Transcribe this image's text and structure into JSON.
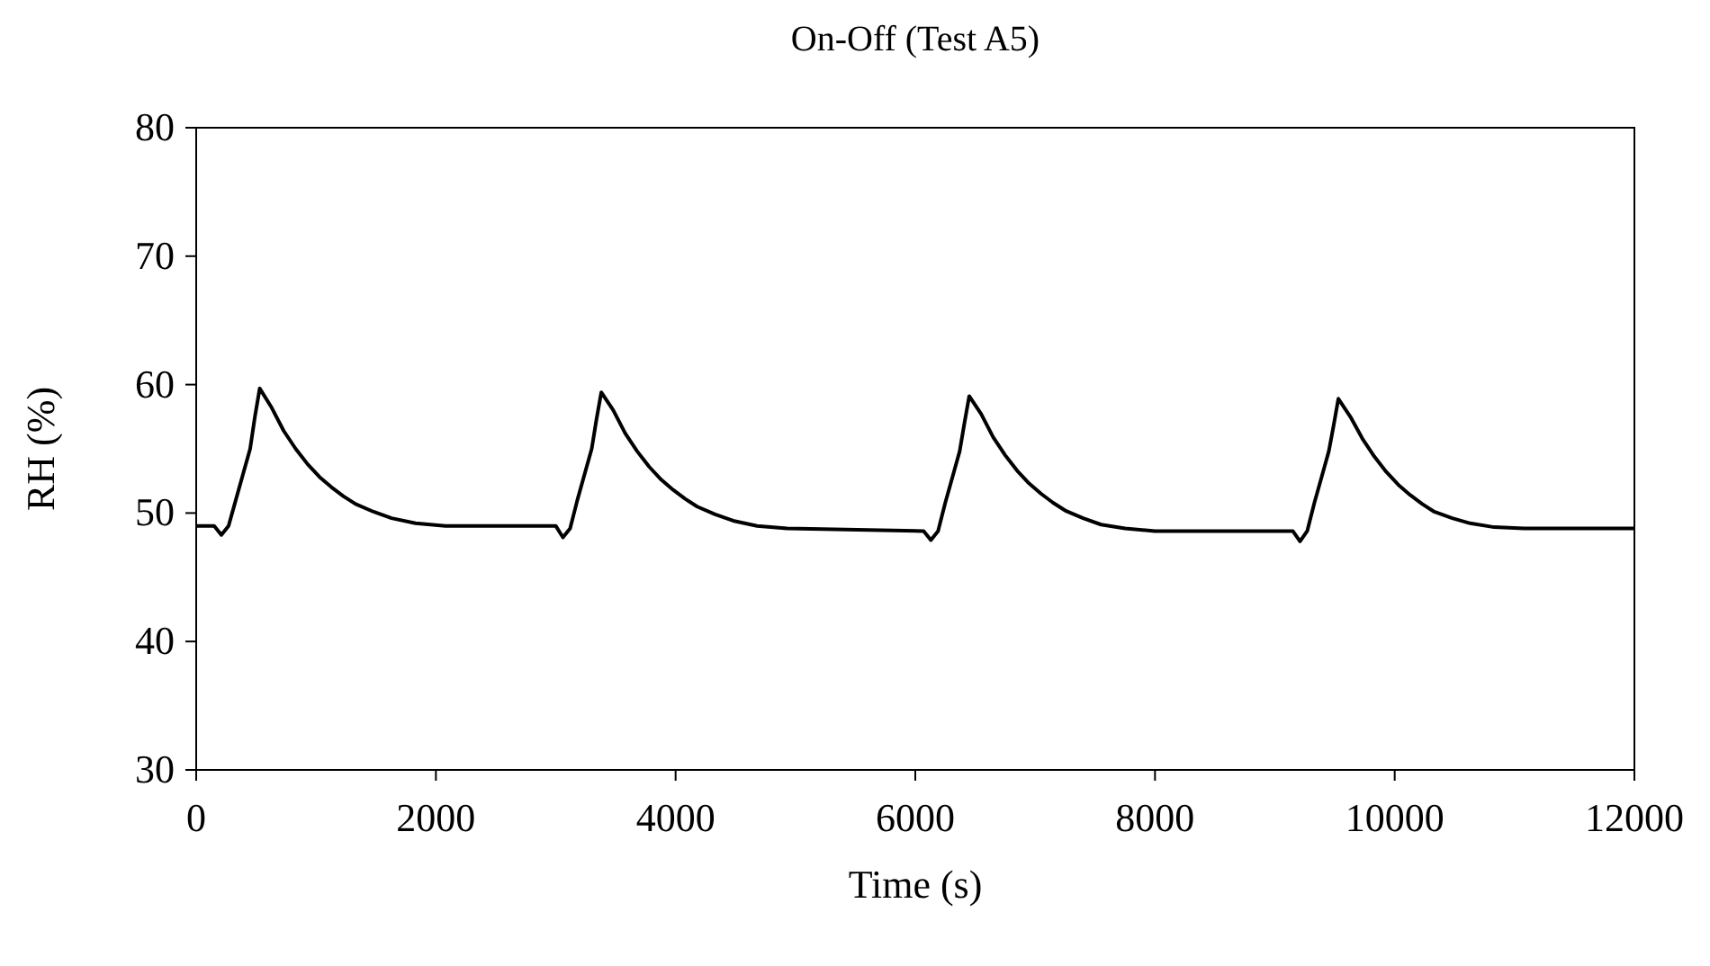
{
  "chart_data": {
    "type": "line",
    "title": "On-Off (Test A5)",
    "xlabel": "Time (s)",
    "ylabel": "RH (%)",
    "xlim": [
      0,
      12000
    ],
    "xticks": [
      0,
      2000,
      4000,
      6000,
      8000,
      10000,
      12000
    ],
    "ylim": [
      30,
      80
    ],
    "yticks": [
      30,
      40,
      50,
      60,
      70,
      80
    ],
    "grid": false,
    "line_style": "solid",
    "series": [
      {
        "color": "#000000",
        "x": [
          0,
          150,
          210,
          270,
          330,
          390,
          450,
          490,
          530,
          630,
          730,
          830,
          930,
          1030,
          1130,
          1230,
          1330,
          1480,
          1630,
          1830,
          2080,
          3000,
          3060,
          3120,
          3180,
          3240,
          3300,
          3340,
          3380,
          3480,
          3580,
          3680,
          3780,
          3880,
          3980,
          4080,
          4180,
          4330,
          4480,
          4680,
          4930,
          6070,
          6130,
          6190,
          6250,
          6310,
          6370,
          6410,
          6450,
          6550,
          6650,
          6750,
          6850,
          6950,
          7050,
          7150,
          7250,
          7400,
          7550,
          7750,
          8000,
          9150,
          9210,
          9270,
          9330,
          9390,
          9450,
          9490,
          9530,
          9630,
          9730,
          9830,
          9930,
          10030,
          10130,
          10230,
          10330,
          10480,
          10630,
          10830,
          11080,
          12000
        ],
        "values": [
          49.0,
          49.0,
          48.3,
          49.0,
          51,
          53,
          55,
          57.5,
          59.7,
          58.2,
          56.4,
          55,
          53.8,
          52.8,
          52,
          51.3,
          50.7,
          50.1,
          49.6,
          49.2,
          49.0,
          49.0,
          48.1,
          48.8,
          51,
          53,
          55,
          57.3,
          59.4,
          58,
          56.2,
          54.8,
          53.6,
          52.6,
          51.8,
          51.1,
          50.5,
          49.9,
          49.4,
          49.0,
          48.8,
          48.6,
          47.9,
          48.6,
          50.8,
          52.8,
          54.8,
          57,
          59.1,
          57.7,
          55.9,
          54.5,
          53.3,
          52.3,
          51.5,
          50.8,
          50.2,
          49.6,
          49.1,
          48.8,
          48.6,
          48.6,
          47.8,
          48.6,
          50.8,
          52.8,
          54.8,
          56.8,
          58.9,
          57.5,
          55.8,
          54.4,
          53.2,
          52.2,
          51.4,
          50.7,
          50.1,
          49.6,
          49.2,
          48.9,
          48.8,
          48.8
        ]
      }
    ]
  }
}
